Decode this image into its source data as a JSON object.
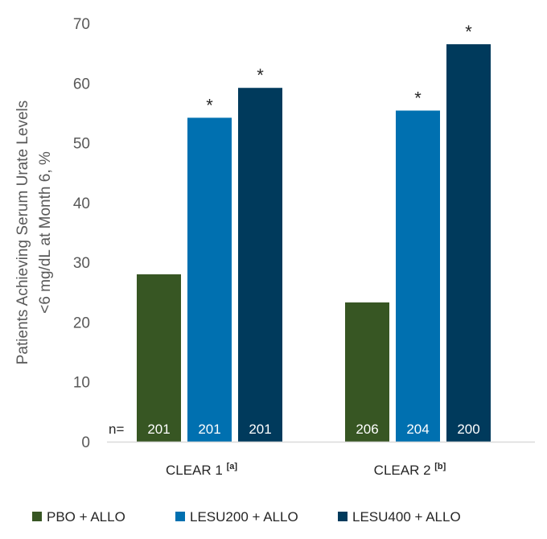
{
  "chart_data": {
    "type": "bar",
    "ylabel_line1": "Patients Achieving Serum Urate Levels",
    "ylabel_line2": "<6 mg/dL at Month 6, %",
    "ylim": [
      0,
      70
    ],
    "yticks": [
      0,
      10,
      20,
      30,
      40,
      50,
      60,
      70
    ],
    "n_prefix": "n=",
    "categories": [
      {
        "name": "CLEAR 1",
        "sup": "[a]"
      },
      {
        "name": "CLEAR 2",
        "sup": "[b]"
      }
    ],
    "series": [
      {
        "name": "PBO + ALLO",
        "color": "#375623",
        "values": [
          28,
          23.3
        ],
        "n": [
          "201",
          "206"
        ],
        "star": [
          false,
          false
        ]
      },
      {
        "name": "LESU200 + ALLO",
        "color": "#0070b0",
        "values": [
          54.2,
          55.4
        ],
        "n": [
          "201",
          "204"
        ],
        "star": [
          true,
          true
        ]
      },
      {
        "name": "LESU400 + ALLO",
        "color": "#003a5c",
        "values": [
          59.2,
          66.5
        ],
        "n": [
          "201",
          "200"
        ],
        "star": [
          true,
          true
        ]
      }
    ],
    "significance_marker": "*",
    "legend_position": "bottom"
  }
}
